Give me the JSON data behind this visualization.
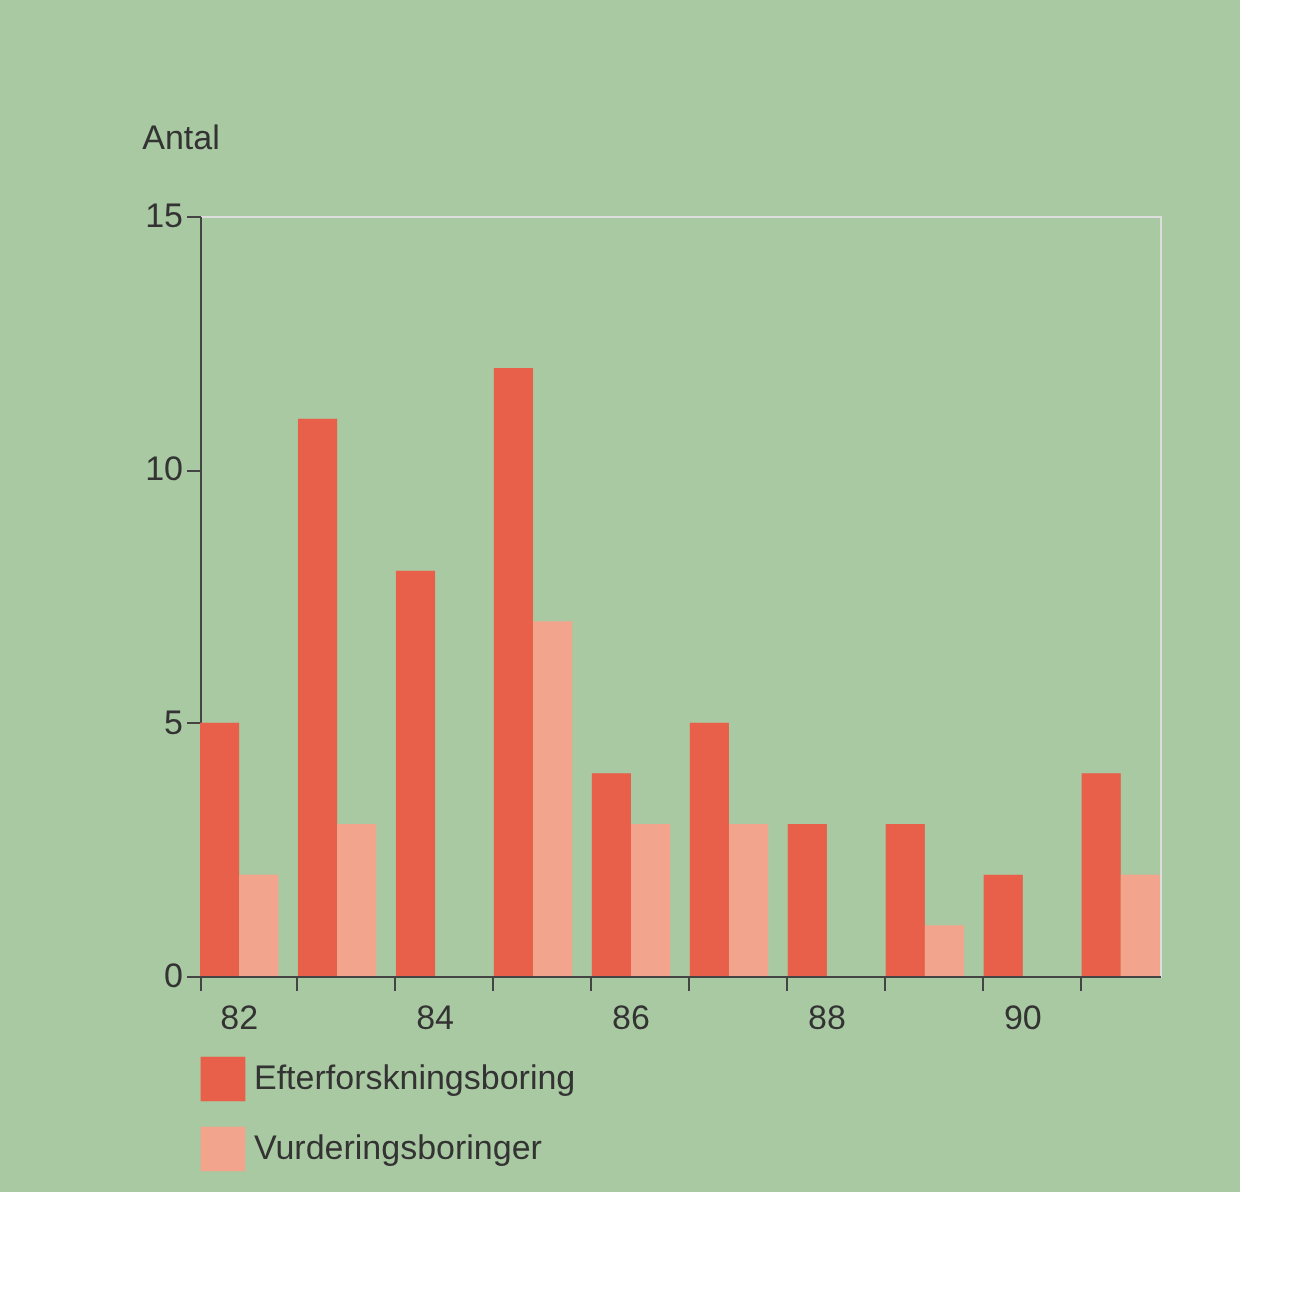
{
  "chart_data": {
    "type": "bar",
    "ylabel": "Antal",
    "categories": [
      "82",
      null,
      "84",
      null,
      "86",
      null,
      "88",
      null,
      "90",
      null
    ],
    "series": [
      {
        "name": "Efterforskningsboring",
        "color": "#e8604a",
        "values": [
          5,
          11,
          8,
          12,
          4,
          5,
          3,
          3,
          2,
          4
        ]
      },
      {
        "name": "Vurderingsboringer",
        "color": "#f2a58c",
        "values": [
          2,
          3,
          null,
          7,
          3,
          3,
          null,
          1,
          null,
          2
        ]
      }
    ],
    "ylim": [
      0,
      15
    ],
    "yticks": [
      0,
      5,
      10,
      15
    ],
    "grid": false,
    "legend": "bottom left"
  }
}
